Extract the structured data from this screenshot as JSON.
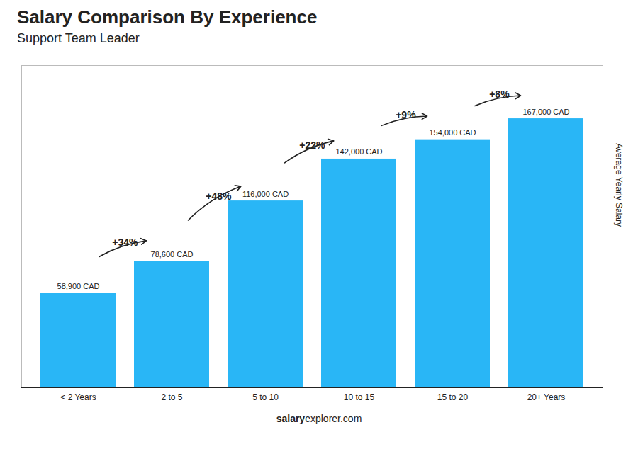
{
  "chart_data": {
    "type": "bar",
    "title": "Salary Comparison By Experience",
    "subtitle": "Support Team Leader",
    "categories": [
      "< 2 Years",
      "2 to 5",
      "5 to 10",
      "10 to 15",
      "15 to 20",
      "20+ Years"
    ],
    "values": [
      58900,
      78600,
      116000,
      142000,
      154000,
      167000
    ],
    "value_labels": [
      "58,900 CAD",
      "78,600 CAD",
      "116,000 CAD",
      "142,000 CAD",
      "154,000 CAD",
      "167,000 CAD"
    ],
    "data_labels": true,
    "color": "#29b6f6",
    "ylabel": "Average Yearly Salary",
    "ylim": [
      0,
      200000
    ],
    "tick_labels": "x",
    "annotations": [
      {
        "text": "+34%",
        "from": "< 2 Years",
        "to": "2 to 5"
      },
      {
        "text": "+48%",
        "from": "2 to 5",
        "to": "5 to 10"
      },
      {
        "text": "+22%",
        "from": "5 to 10",
        "to": "10 to 15"
      },
      {
        "text": "+9%",
        "from": "10 to 15",
        "to": "15 to 20"
      },
      {
        "text": "+8%",
        "from": "15 to 20",
        "to": "20+ Years"
      }
    ],
    "caption": [
      "salary",
      "explorer.com"
    ]
  }
}
